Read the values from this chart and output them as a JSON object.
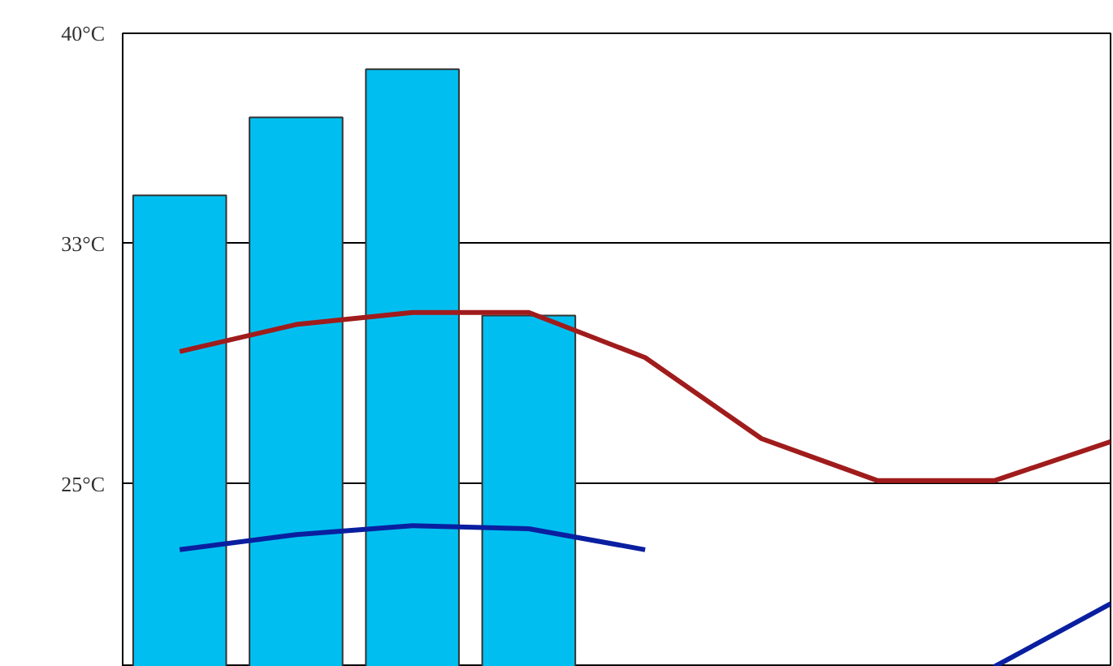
{
  "chart_data": {
    "type": "bar",
    "categories": [
      null,
      null,
      null,
      null,
      null,
      null,
      null,
      null,
      null
    ],
    "series": [
      {
        "color": "#00bff0",
        "values": [
          34.6,
          37.2,
          38.8,
          30.6,
          null,
          null,
          null,
          null,
          null
        ]
      },
      {
        "type": "line",
        "color": "#a01c1c",
        "values": [
          29.4,
          30.3,
          30.7,
          30.7,
          29.2,
          26.5,
          25.1,
          25.1,
          26.4
        ]
      },
      {
        "type": "line",
        "color": "#0a1fa0",
        "values": [
          22.8,
          23.3,
          23.6,
          23.5,
          22.8,
          null,
          null,
          18.9,
          21.0
        ]
      }
    ],
    "ylim": [
      18.9,
      40
    ],
    "yticks": [
      {
        "value": 40,
        "label": "40°C"
      },
      {
        "value": 33,
        "label": "33°C"
      },
      {
        "value": 25,
        "label": "25°C"
      }
    ],
    "grid": "y",
    "tick_labels": "y",
    "marker": "none",
    "line_style": "solid"
  }
}
